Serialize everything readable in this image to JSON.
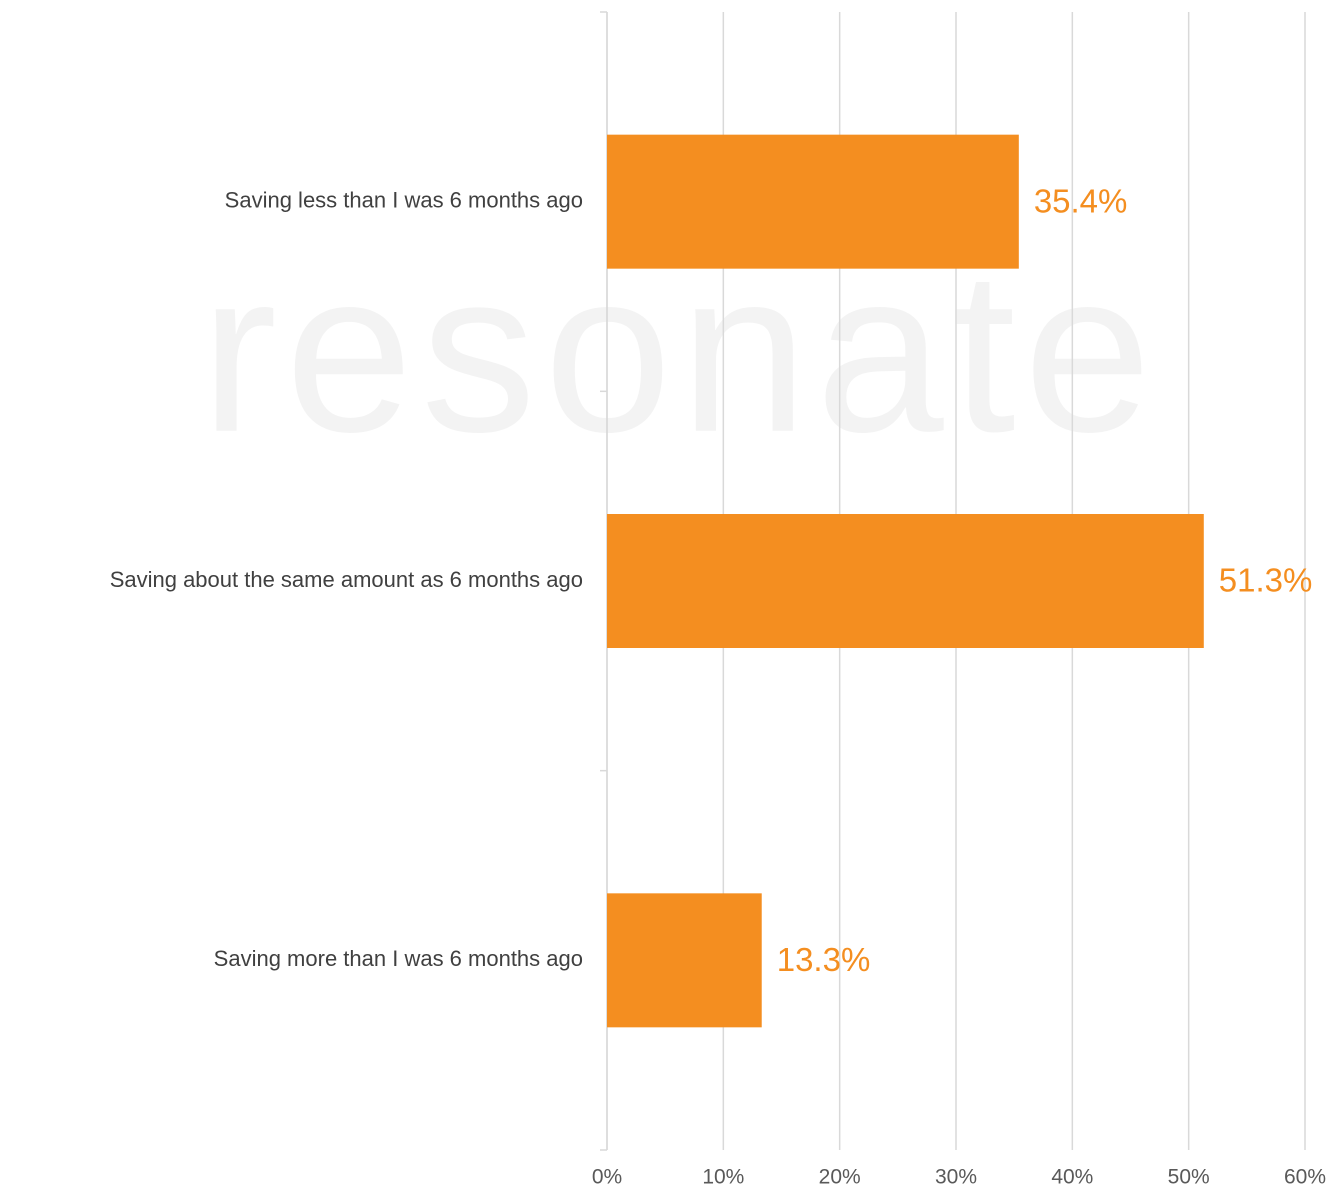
{
  "chart_data": {
    "type": "bar",
    "orientation": "horizontal",
    "watermark": "resonate",
    "categories": [
      "Saving less than I was 6 months ago",
      "Saving about the same amount as 6 months ago",
      "Saving more than I was 6 months ago"
    ],
    "values": [
      35.4,
      51.3,
      13.3
    ],
    "value_labels": [
      "35.4%",
      "51.3%",
      "13.3%"
    ],
    "color": "#f48e20",
    "xlim": [
      0,
      60
    ],
    "xticks": [
      {
        "value": 0,
        "label": "0%"
      },
      {
        "value": 10,
        "label": "10%"
      },
      {
        "value": 20,
        "label": "20%"
      },
      {
        "value": 30,
        "label": "30%"
      },
      {
        "value": 40,
        "label": "40%"
      },
      {
        "value": 50,
        "label": "50%"
      },
      {
        "value": 60,
        "label": "60%"
      }
    ],
    "grid": true
  }
}
